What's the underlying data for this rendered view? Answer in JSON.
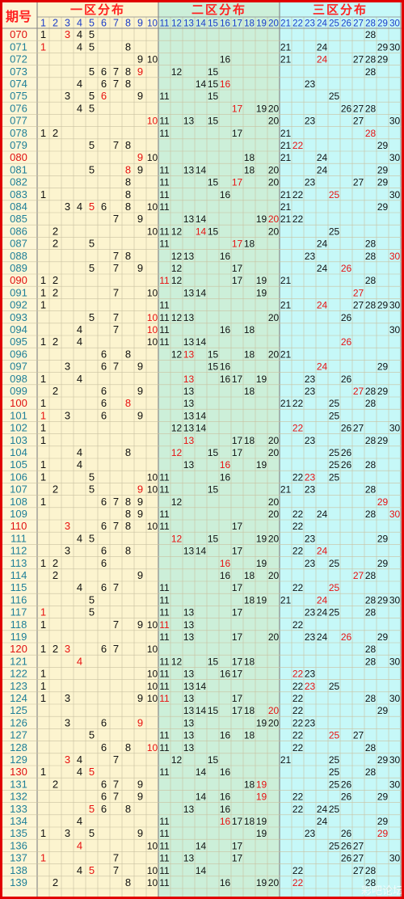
{
  "colors": {
    "zone1_bg": "#fcf4cf",
    "zone2_bg": "#ccefd9",
    "zone3_bg": "#c6f8f8",
    "frame": "#e10000",
    "grid_line": "#c8c0a0",
    "header_red": "#ff2020",
    "subheader_blue": "#1a3cc9",
    "period_red": "#e01010",
    "period_teal": "#1e7f98",
    "number_black": "#111111",
    "number_red": "#e81010"
  },
  "headers": {
    "period_label": "期号",
    "zone1_title": "一区分布",
    "zone2_title": "二区分布",
    "zone3_title": "三区分布",
    "columns": [
      "1",
      "2",
      "3",
      "4",
      "5",
      "6",
      "7",
      "8",
      "9",
      "10",
      "11",
      "12",
      "13",
      "14",
      "15",
      "16",
      "17",
      "18",
      "19",
      "20",
      "21",
      "22",
      "23",
      "24",
      "25",
      "26",
      "27",
      "28",
      "29",
      "30"
    ]
  },
  "watermark": "彩吧论坛",
  "rows": [
    {
      "period": "070",
      "period_red": true,
      "nums": [
        1,
        3,
        4,
        5,
        28
      ],
      "red": [
        3
      ]
    },
    {
      "period": "071",
      "nums": [
        1,
        4,
        5,
        8,
        21,
        24,
        29,
        30
      ],
      "red": [
        1
      ]
    },
    {
      "period": "072",
      "nums": [
        9,
        10,
        16,
        21,
        24,
        27,
        28,
        29
      ],
      "red": [
        24
      ]
    },
    {
      "period": "073",
      "nums": [
        5,
        6,
        7,
        8,
        9,
        12,
        15,
        28
      ],
      "red": [
        9
      ]
    },
    {
      "period": "074",
      "nums": [
        4,
        6,
        7,
        8,
        14,
        15,
        16,
        23
      ],
      "red": [
        16
      ]
    },
    {
      "period": "075",
      "nums": [
        3,
        5,
        6,
        9,
        11,
        15,
        25
      ],
      "red": [
        6
      ]
    },
    {
      "period": "076",
      "nums": [
        4,
        5,
        17,
        19,
        20,
        26,
        27,
        28
      ],
      "red": [
        17
      ]
    },
    {
      "period": "077",
      "nums": [
        10,
        11,
        13,
        15,
        20,
        23,
        27,
        30
      ],
      "red": [
        10
      ]
    },
    {
      "period": "078",
      "nums": [
        1,
        2,
        11,
        17,
        21,
        28
      ],
      "red": [
        28
      ]
    },
    {
      "period": "079",
      "nums": [
        5,
        7,
        8,
        21,
        22,
        29
      ],
      "red": [
        22
      ]
    },
    {
      "period": "080",
      "period_red": true,
      "nums": [
        9,
        10,
        18,
        21,
        24,
        30
      ],
      "red": [
        9
      ]
    },
    {
      "period": "081",
      "nums": [
        5,
        8,
        9,
        11,
        13,
        14,
        18,
        20,
        24,
        29
      ],
      "red": [
        8
      ]
    },
    {
      "period": "082",
      "nums": [
        8,
        11,
        15,
        17,
        20,
        23,
        27,
        29
      ],
      "red": [
        17
      ]
    },
    {
      "period": "083",
      "nums": [
        1,
        8,
        11,
        16,
        21,
        22,
        25,
        30
      ],
      "red": [
        25
      ]
    },
    {
      "period": "084",
      "nums": [
        3,
        4,
        5,
        6,
        8,
        10,
        11,
        21,
        29
      ],
      "red": [
        5
      ]
    },
    {
      "period": "085",
      "nums": [
        7,
        9,
        13,
        14,
        19,
        20,
        21,
        22
      ],
      "red": [
        20
      ]
    },
    {
      "period": "086",
      "nums": [
        2,
        10,
        11,
        12,
        14,
        15,
        20,
        25
      ],
      "red": [
        14
      ]
    },
    {
      "period": "087",
      "nums": [
        2,
        5,
        11,
        17,
        18,
        24,
        28
      ],
      "red": [
        17
      ]
    },
    {
      "period": "088",
      "nums": [
        7,
        8,
        12,
        13,
        16,
        23,
        28,
        30
      ],
      "red": [
        30
      ]
    },
    {
      "period": "089",
      "nums": [
        5,
        7,
        9,
        12,
        17,
        24,
        26
      ],
      "red": [
        26
      ]
    },
    {
      "period": "090",
      "period_red": true,
      "nums": [
        1,
        2,
        11,
        12,
        17,
        19,
        21,
        28
      ],
      "red": [
        11
      ]
    },
    {
      "period": "091",
      "nums": [
        1,
        2,
        7,
        10,
        13,
        14,
        19,
        27
      ],
      "red": [
        27
      ]
    },
    {
      "period": "092",
      "nums": [
        1,
        11,
        21,
        24,
        27,
        28,
        29,
        30
      ],
      "red": [
        24
      ]
    },
    {
      "period": "093",
      "nums": [
        5,
        7,
        10,
        11,
        12,
        13,
        20,
        26
      ],
      "red": [
        10
      ]
    },
    {
      "period": "094",
      "nums": [
        4,
        7,
        10,
        11,
        16,
        18,
        30
      ],
      "red": [
        10
      ]
    },
    {
      "period": "095",
      "nums": [
        1,
        2,
        4,
        10,
        11,
        13,
        14,
        26
      ],
      "red": [
        26
      ]
    },
    {
      "period": "096",
      "nums": [
        6,
        8,
        12,
        13,
        15,
        18,
        20,
        21
      ],
      "red": [
        13
      ]
    },
    {
      "period": "097",
      "nums": [
        3,
        6,
        7,
        9,
        15,
        16,
        24,
        29
      ],
      "red": [
        24
      ]
    },
    {
      "period": "098",
      "nums": [
        1,
        4,
        13,
        16,
        17,
        19,
        23,
        26
      ],
      "red": [
        13
      ]
    },
    {
      "period": "099",
      "nums": [
        2,
        6,
        9,
        13,
        18,
        23,
        27,
        28,
        29
      ],
      "red": [
        27
      ]
    },
    {
      "period": "100",
      "period_red": true,
      "nums": [
        1,
        6,
        8,
        13,
        21,
        22,
        25,
        28
      ],
      "red": [
        8
      ]
    },
    {
      "period": "101",
      "nums": [
        1,
        3,
        6,
        9,
        13,
        14,
        25
      ],
      "red": [
        1
      ]
    },
    {
      "period": "102",
      "nums": [
        1,
        12,
        13,
        14,
        22,
        26,
        27,
        30
      ],
      "red": [
        22
      ]
    },
    {
      "period": "103",
      "nums": [
        1,
        13,
        17,
        18,
        20,
        23,
        28,
        29
      ],
      "red": [
        13
      ]
    },
    {
      "period": "104",
      "nums": [
        4,
        8,
        12,
        15,
        17,
        20,
        25,
        26
      ],
      "red": [
        12
      ]
    },
    {
      "period": "105",
      "nums": [
        1,
        4,
        13,
        16,
        19,
        25,
        26,
        28
      ],
      "red": [
        16
      ]
    },
    {
      "period": "106",
      "nums": [
        1,
        5,
        10,
        11,
        16,
        22,
        23,
        25
      ],
      "red": [
        23
      ]
    },
    {
      "period": "107",
      "nums": [
        2,
        5,
        9,
        10,
        11,
        15,
        21,
        23,
        28
      ],
      "red": [
        9
      ]
    },
    {
      "period": "108",
      "nums": [
        1,
        6,
        7,
        8,
        9,
        12,
        20,
        29
      ],
      "red": [
        29
      ]
    },
    {
      "period": "109",
      "nums": [
        8,
        9,
        11,
        20,
        22,
        24,
        28,
        30
      ],
      "red": [
        30
      ]
    },
    {
      "period": "110",
      "period_red": true,
      "nums": [
        3,
        6,
        7,
        8,
        10,
        11,
        17,
        22
      ],
      "red": [
        3
      ]
    },
    {
      "period": "111",
      "nums": [
        4,
        5,
        12,
        15,
        19,
        20,
        23,
        29
      ],
      "red": [
        12
      ]
    },
    {
      "period": "112",
      "nums": [
        3,
        6,
        8,
        13,
        14,
        17,
        22,
        24
      ],
      "red": [
        24
      ]
    },
    {
      "period": "113",
      "nums": [
        1,
        2,
        6,
        16,
        19,
        23,
        25,
        29
      ],
      "red": [
        16
      ]
    },
    {
      "period": "114",
      "nums": [
        2,
        9,
        16,
        18,
        20,
        27,
        28
      ],
      "red": [
        27
      ]
    },
    {
      "period": "115",
      "nums": [
        4,
        6,
        7,
        11,
        17,
        22,
        25
      ],
      "red": [
        25
      ]
    },
    {
      "period": "116",
      "nums": [
        5,
        11,
        18,
        19,
        21,
        24,
        28,
        29,
        30
      ],
      "red": [
        24
      ]
    },
    {
      "period": "117",
      "nums": [
        1,
        5,
        11,
        13,
        17,
        23,
        24,
        25,
        28
      ],
      "red": [
        1
      ]
    },
    {
      "period": "118",
      "nums": [
        1,
        7,
        9,
        10,
        11,
        13,
        22
      ],
      "red": [
        11
      ]
    },
    {
      "period": "119",
      "nums": [
        11,
        13,
        17,
        20,
        23,
        24,
        26,
        29
      ],
      "red": [
        26
      ]
    },
    {
      "period": "120",
      "period_red": true,
      "nums": [
        1,
        2,
        3,
        6,
        7,
        10,
        28
      ],
      "red": [
        3
      ]
    },
    {
      "period": "121",
      "nums": [
        4,
        11,
        12,
        15,
        17,
        18,
        28,
        30
      ],
      "red": [
        4
      ]
    },
    {
      "period": "122",
      "nums": [
        1,
        10,
        11,
        13,
        16,
        17,
        22,
        23
      ],
      "red": [
        22
      ]
    },
    {
      "period": "123",
      "nums": [
        1,
        10,
        11,
        13,
        14,
        22,
        23,
        25
      ],
      "red": [
        23
      ]
    },
    {
      "period": "124",
      "nums": [
        1,
        3,
        9,
        10,
        11,
        13,
        17,
        22,
        28,
        30
      ],
      "red": [
        11
      ]
    },
    {
      "period": "125",
      "nums": [
        13,
        14,
        15,
        17,
        18,
        20,
        22,
        29
      ],
      "red": [
        20
      ]
    },
    {
      "period": "126",
      "nums": [
        3,
        6,
        9,
        13,
        19,
        20,
        22,
        23
      ],
      "red": [
        9
      ]
    },
    {
      "period": "127",
      "nums": [
        5,
        11,
        13,
        16,
        18,
        22,
        25,
        27
      ],
      "red": [
        25
      ]
    },
    {
      "period": "128",
      "nums": [
        6,
        8,
        10,
        11,
        13,
        22,
        28
      ],
      "red": [
        10
      ]
    },
    {
      "period": "129",
      "nums": [
        3,
        4,
        7,
        12,
        15,
        21,
        25,
        29,
        30
      ],
      "red": [
        3
      ]
    },
    {
      "period": "130",
      "period_red": true,
      "nums": [
        1,
        4,
        5,
        11,
        14,
        16,
        25,
        28
      ],
      "red": [
        5
      ]
    },
    {
      "period": "131",
      "nums": [
        2,
        6,
        7,
        9,
        18,
        19,
        25,
        26,
        30
      ],
      "red": [
        19
      ]
    },
    {
      "period": "132",
      "nums": [
        6,
        7,
        9,
        14,
        16,
        19,
        22,
        26,
        29
      ],
      "red": [
        19
      ]
    },
    {
      "period": "133",
      "nums": [
        5,
        6,
        8,
        13,
        16,
        22,
        24,
        25
      ],
      "red": [
        5
      ]
    },
    {
      "period": "134",
      "nums": [
        4,
        11,
        16,
        17,
        18,
        19,
        24,
        29
      ],
      "red": [
        16
      ]
    },
    {
      "period": "135",
      "nums": [
        1,
        3,
        5,
        9,
        11,
        19,
        23,
        26,
        29
      ],
      "red": [
        29
      ]
    },
    {
      "period": "136",
      "nums": [
        4,
        10,
        11,
        14,
        17,
        25,
        26,
        27
      ],
      "red": [
        4
      ]
    },
    {
      "period": "137",
      "nums": [
        1,
        7,
        11,
        13,
        17,
        26,
        27,
        30
      ],
      "red": [
        1
      ]
    },
    {
      "period": "138",
      "nums": [
        4,
        5,
        7,
        10,
        11,
        14,
        22,
        27,
        28
      ],
      "red": [
        5
      ]
    },
    {
      "period": "139",
      "nums": [
        2,
        8,
        10,
        11,
        16,
        19,
        20,
        22,
        28
      ],
      "red": [
        22
      ]
    }
  ]
}
